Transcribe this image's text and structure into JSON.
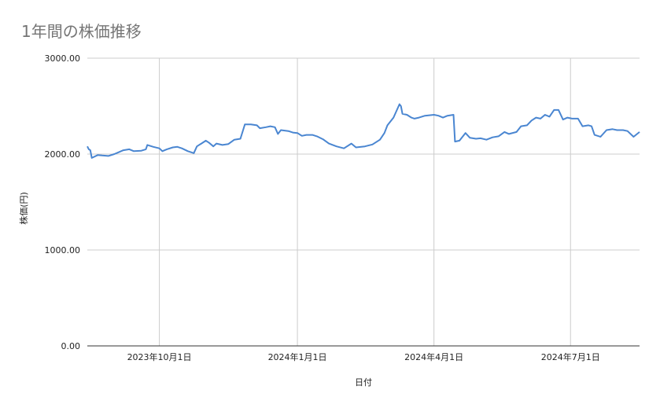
{
  "chart_data": {
    "type": "line",
    "title": "1年間の株価推移",
    "xlabel": "日付",
    "ylabel": "株価(円)",
    "ylim": [
      0,
      3000
    ],
    "xlim": [
      "2023-08-14",
      "2024-08-16"
    ],
    "yticks": [
      "0.00",
      "1000.00",
      "2000.00",
      "3000.00"
    ],
    "xticks": [
      {
        "date": "2023-10-01",
        "label": "2023年10月1日"
      },
      {
        "date": "2024-01-01",
        "label": "2024年1月1日"
      },
      {
        "date": "2024-04-01",
        "label": "2024年4月1日"
      },
      {
        "date": "2024-07-01",
        "label": "2024年7月1日"
      }
    ],
    "grid": true,
    "series": [
      {
        "color": "#4a86d1",
        "points": [
          [
            "2023-08-14",
            2080
          ],
          [
            "2023-08-15",
            2050
          ],
          [
            "2023-08-16",
            2040
          ],
          [
            "2023-08-17",
            1960
          ],
          [
            "2023-08-21",
            1990
          ],
          [
            "2023-08-24",
            1985
          ],
          [
            "2023-08-28",
            1980
          ],
          [
            "2023-09-01",
            2000
          ],
          [
            "2023-09-04",
            2020
          ],
          [
            "2023-09-07",
            2040
          ],
          [
            "2023-09-11",
            2050
          ],
          [
            "2023-09-14",
            2030
          ],
          [
            "2023-09-19",
            2035
          ],
          [
            "2023-09-22",
            2050
          ],
          [
            "2023-09-23",
            2095
          ],
          [
            "2023-09-27",
            2075
          ],
          [
            "2023-10-01",
            2060
          ],
          [
            "2023-10-03",
            2030
          ],
          [
            "2023-10-06",
            2050
          ],
          [
            "2023-10-10",
            2070
          ],
          [
            "2023-10-13",
            2075
          ],
          [
            "2023-10-16",
            2060
          ],
          [
            "2023-10-20",
            2030
          ],
          [
            "2023-10-24",
            2010
          ],
          [
            "2023-10-26",
            2080
          ],
          [
            "2023-10-29",
            2110
          ],
          [
            "2023-11-01",
            2140
          ],
          [
            "2023-11-03",
            2120
          ],
          [
            "2023-11-06",
            2080
          ],
          [
            "2023-11-08",
            2110
          ],
          [
            "2023-11-12",
            2095
          ],
          [
            "2023-11-16",
            2105
          ],
          [
            "2023-11-20",
            2150
          ],
          [
            "2023-11-24",
            2160
          ],
          [
            "2023-11-27",
            2310
          ],
          [
            "2023-12-01",
            2310
          ],
          [
            "2023-12-05",
            2300
          ],
          [
            "2023-12-07",
            2270
          ],
          [
            "2023-12-11",
            2280
          ],
          [
            "2023-12-14",
            2290
          ],
          [
            "2023-12-17",
            2280
          ],
          [
            "2023-12-19",
            2210
          ],
          [
            "2023-12-21",
            2250
          ],
          [
            "2023-12-26",
            2240
          ],
          [
            "2023-12-29",
            2225
          ],
          [
            "2024-01-01",
            2220
          ],
          [
            "2024-01-04",
            2190
          ],
          [
            "2024-01-07",
            2200
          ],
          [
            "2024-01-11",
            2200
          ],
          [
            "2024-01-14",
            2185
          ],
          [
            "2024-01-18",
            2155
          ],
          [
            "2024-01-22",
            2110
          ],
          [
            "2024-01-27",
            2080
          ],
          [
            "2024-02-01",
            2060
          ],
          [
            "2024-02-06",
            2110
          ],
          [
            "2024-02-09",
            2070
          ],
          [
            "2024-02-15",
            2080
          ],
          [
            "2024-02-20",
            2100
          ],
          [
            "2024-02-25",
            2150
          ],
          [
            "2024-02-28",
            2220
          ],
          [
            "2024-03-01",
            2300
          ],
          [
            "2024-03-05",
            2380
          ],
          [
            "2024-03-09",
            2520
          ],
          [
            "2024-03-10",
            2500
          ],
          [
            "2024-03-11",
            2420
          ],
          [
            "2024-03-14",
            2410
          ],
          [
            "2024-03-17",
            2380
          ],
          [
            "2024-03-19",
            2370
          ],
          [
            "2024-03-22",
            2380
          ],
          [
            "2024-03-26",
            2400
          ],
          [
            "2024-04-01",
            2410
          ],
          [
            "2024-04-04",
            2400
          ],
          [
            "2024-04-07",
            2380
          ],
          [
            "2024-04-10",
            2400
          ],
          [
            "2024-04-14",
            2410
          ],
          [
            "2024-04-15",
            2130
          ],
          [
            "2024-04-18",
            2140
          ],
          [
            "2024-04-22",
            2220
          ],
          [
            "2024-04-25",
            2170
          ],
          [
            "2024-04-29",
            2160
          ],
          [
            "2024-05-02",
            2165
          ],
          [
            "2024-05-06",
            2150
          ],
          [
            "2024-05-10",
            2175
          ],
          [
            "2024-05-14",
            2185
          ],
          [
            "2024-05-18",
            2230
          ],
          [
            "2024-05-21",
            2210
          ],
          [
            "2024-05-26",
            2230
          ],
          [
            "2024-05-29",
            2290
          ],
          [
            "2024-06-02",
            2300
          ],
          [
            "2024-06-05",
            2350
          ],
          [
            "2024-06-08",
            2380
          ],
          [
            "2024-06-11",
            2370
          ],
          [
            "2024-06-14",
            2410
          ],
          [
            "2024-06-17",
            2390
          ],
          [
            "2024-06-20",
            2460
          ],
          [
            "2024-06-23",
            2460
          ],
          [
            "2024-06-26",
            2360
          ],
          [
            "2024-06-29",
            2380
          ],
          [
            "2024-07-02",
            2370
          ],
          [
            "2024-07-06",
            2370
          ],
          [
            "2024-07-09",
            2290
          ],
          [
            "2024-07-13",
            2300
          ],
          [
            "2024-07-15",
            2290
          ],
          [
            "2024-07-17",
            2200
          ],
          [
            "2024-07-21",
            2180
          ],
          [
            "2024-07-25",
            2250
          ],
          [
            "2024-07-29",
            2260
          ],
          [
            "2024-08-01",
            2250
          ],
          [
            "2024-08-05",
            2250
          ],
          [
            "2024-08-08",
            2240
          ],
          [
            "2024-08-12",
            2180
          ],
          [
            "2024-08-16",
            2230
          ]
        ]
      }
    ]
  }
}
